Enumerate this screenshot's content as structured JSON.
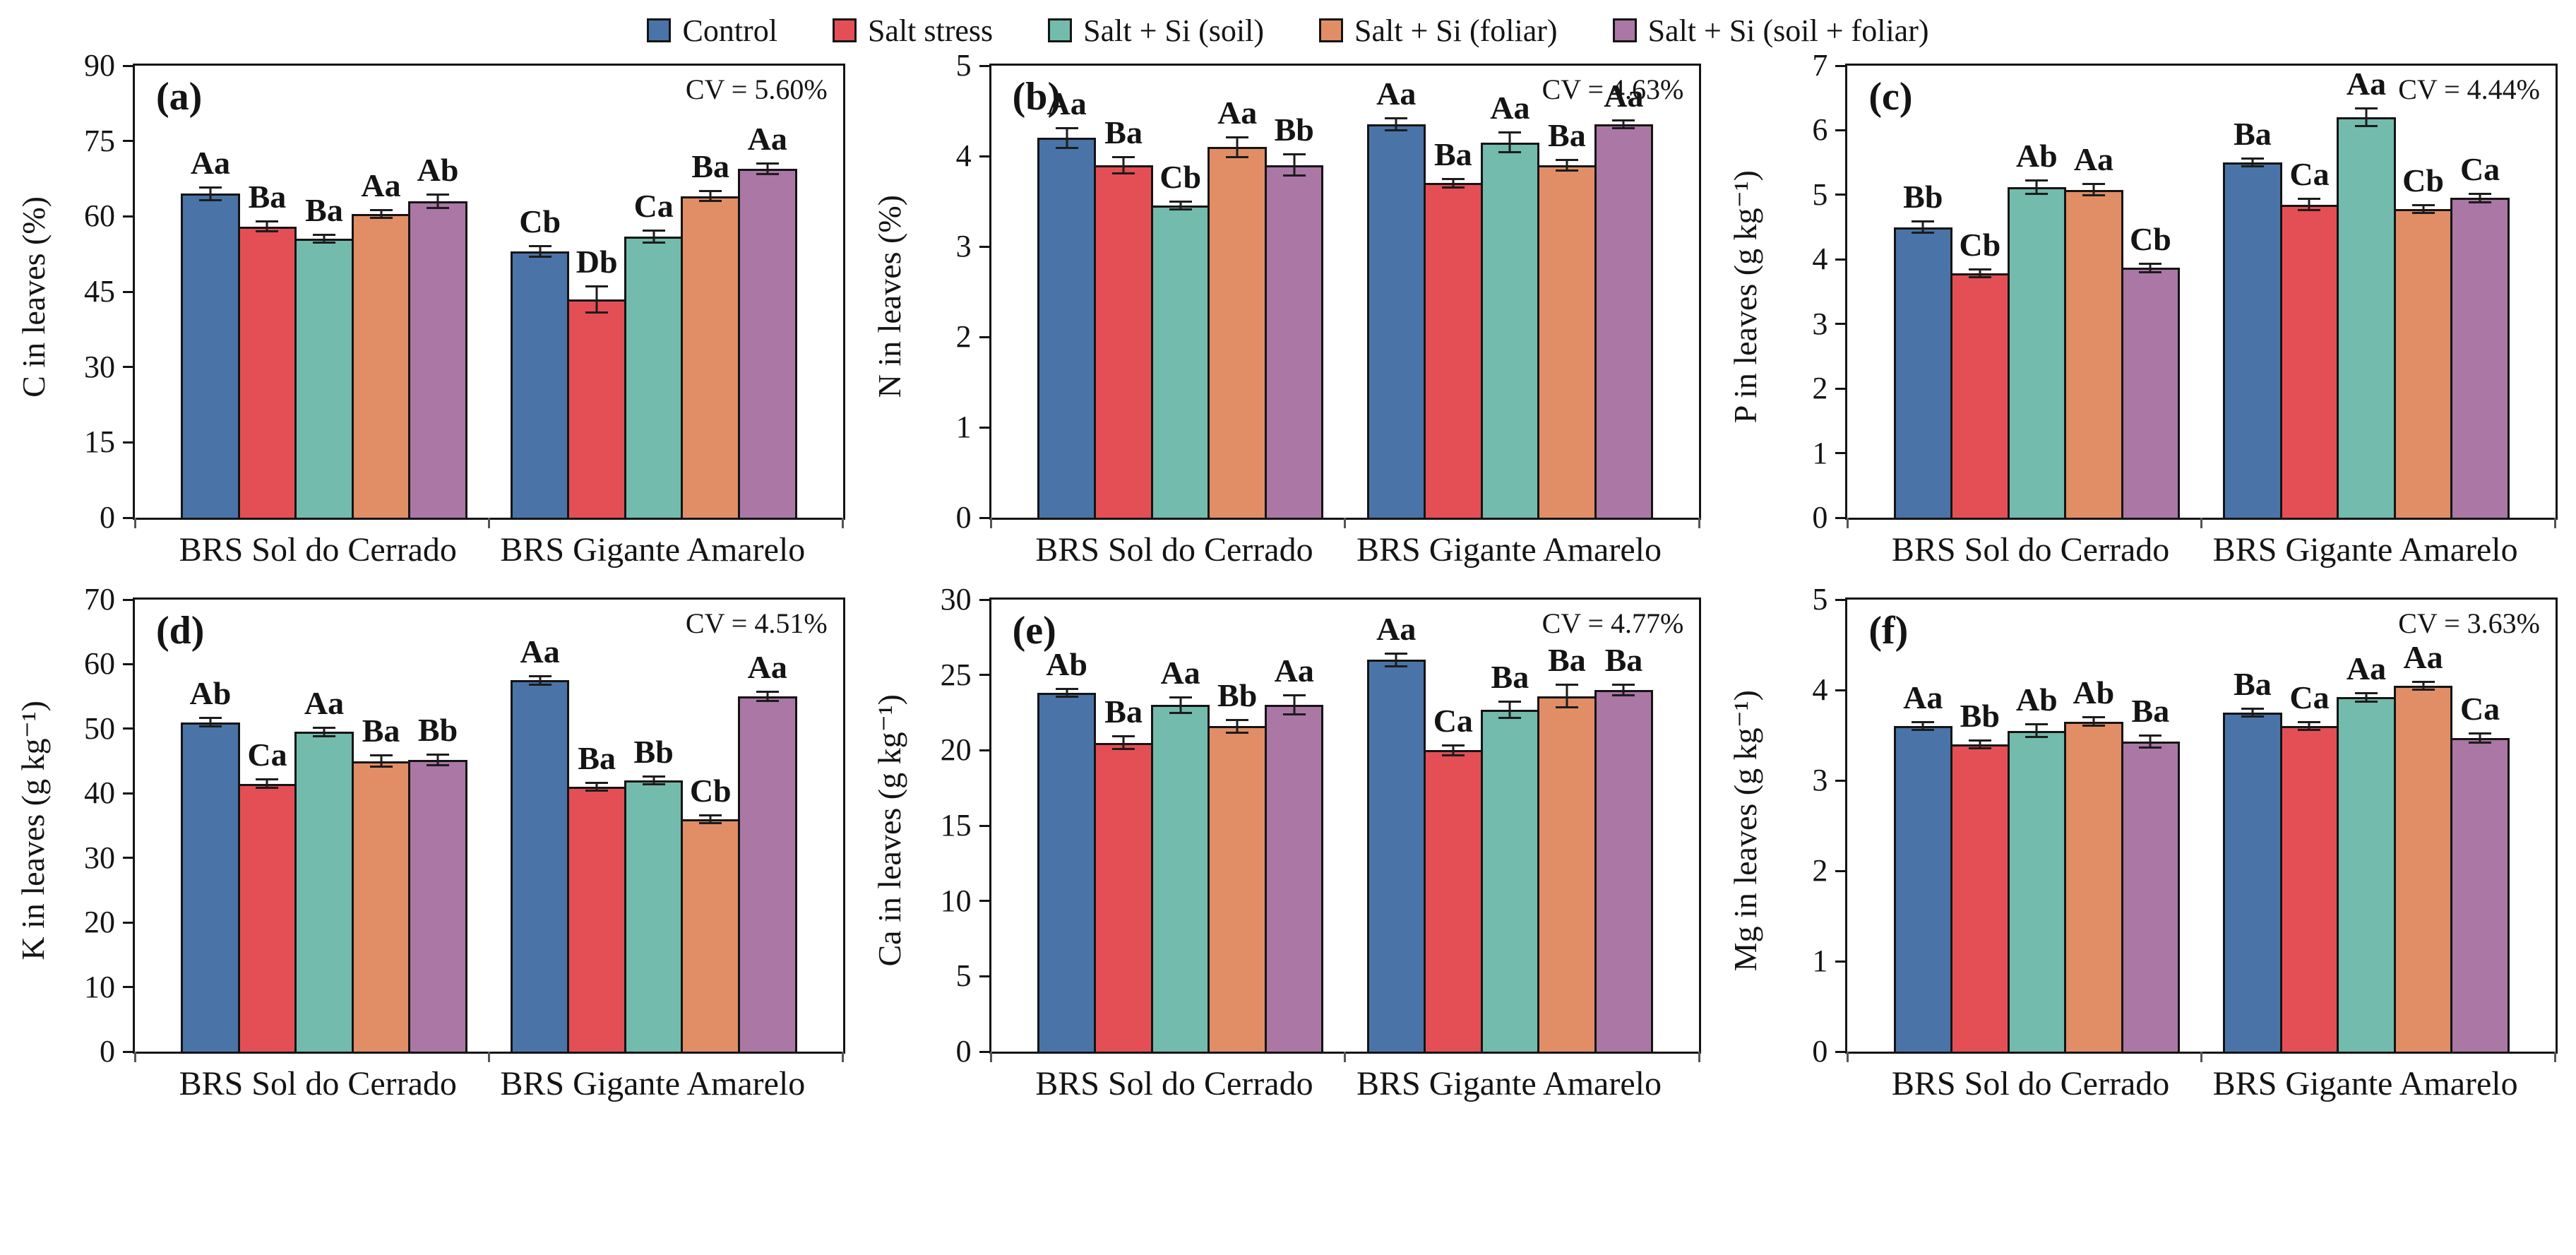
{
  "legend": {
    "items": [
      {
        "label": "Control",
        "color": "#4a74a8"
      },
      {
        "label": "Salt stress",
        "color": "#e44f55"
      },
      {
        "label": "Salt + Si (soil)",
        "color": "#73bbad"
      },
      {
        "label": "Salt + Si (foliar)",
        "color": "#e18e66"
      },
      {
        "label": "Salt + Si (soil + foliar)",
        "color": "#ab77a5"
      }
    ]
  },
  "chart_data": [
    {
      "type": "bar",
      "panel_label": "(a)",
      "cv_label": "CV = 5.60%",
      "ylabel": "C in leaves (%)",
      "ymax": 90,
      "ystep": 15,
      "ylim": [
        0,
        90
      ],
      "treatments": [
        "Control",
        "Salt stress",
        "Salt + Si (soil)",
        "Salt + Si (foliar)",
        "Salt + Si (soil + foliar)"
      ],
      "groups": [
        {
          "label": "BRS Sol do Cerrado",
          "values": [
            64.5,
            58,
            55.5,
            60.5,
            63
          ],
          "errors": [
            1.5,
            1.2,
            0.8,
            1.0,
            1.5
          ],
          "letters": [
            "Aa",
            "Ba",
            "Ba",
            "Aa",
            "Ab"
          ]
        },
        {
          "label": "BRS Gigante Amarelo",
          "values": [
            53,
            43.5,
            56,
            64,
            69.5
          ],
          "errors": [
            1.3,
            2.8,
            1.4,
            1.2,
            1.3
          ],
          "letters": [
            "Cb",
            "Db",
            "Ca",
            "Ba",
            "Aa"
          ]
        }
      ]
    },
    {
      "type": "bar",
      "panel_label": "(b)",
      "cv_label": "CV = 4.63%",
      "ylabel": "N in leaves (%)",
      "ymax": 5,
      "ystep": 1,
      "ylim": [
        0,
        5
      ],
      "treatments": [
        "Control",
        "Salt stress",
        "Salt + Si (soil)",
        "Salt + Si (foliar)",
        "Salt + Si (soil + foliar)"
      ],
      "groups": [
        {
          "label": "BRS Sol do Cerrado",
          "values": [
            4.2,
            3.9,
            3.45,
            4.1,
            3.9
          ],
          "errors": [
            0.12,
            0.1,
            0.05,
            0.12,
            0.13
          ],
          "letters": [
            "Aa",
            "Ba",
            "Cb",
            "Aa",
            "Bb"
          ]
        },
        {
          "label": "BRS Gigante Amarelo",
          "values": [
            4.35,
            3.7,
            4.15,
            3.9,
            4.35
          ],
          "errors": [
            0.08,
            0.06,
            0.12,
            0.07,
            0.05
          ],
          "letters": [
            "Aa",
            "Ba",
            "Aa",
            "Ba",
            "Aa"
          ]
        }
      ]
    },
    {
      "type": "bar",
      "panel_label": "(c)",
      "cv_label": "CV = 4.44%",
      "ylabel": "P in leaves (g kg⁻¹)",
      "ymax": 7,
      "ystep": 1,
      "ylim": [
        0,
        7
      ],
      "treatments": [
        "Control",
        "Salt stress",
        "Salt + Si (soil)",
        "Salt + Si (foliar)",
        "Salt + Si (soil + foliar)"
      ],
      "groups": [
        {
          "label": "BRS Sol do Cerrado",
          "values": [
            4.5,
            3.78,
            5.12,
            5.08,
            3.87
          ],
          "errors": [
            0.1,
            0.07,
            0.12,
            0.1,
            0.08
          ],
          "letters": [
            "Bb",
            "Cb",
            "Ab",
            "Aa",
            "Cb"
          ]
        },
        {
          "label": "BRS Gigante Amarelo",
          "values": [
            5.5,
            4.85,
            6.2,
            4.78,
            4.95
          ],
          "errors": [
            0.07,
            0.1,
            0.15,
            0.08,
            0.08
          ],
          "letters": [
            "Ba",
            "Ca",
            "Aa",
            "Cb",
            "Ca"
          ]
        }
      ]
    },
    {
      "type": "bar",
      "panel_label": "(d)",
      "cv_label": "CV = 4.51%",
      "ylabel": "K in leaves (g kg⁻¹)",
      "ymax": 70,
      "ystep": 10,
      "ylim": [
        0,
        70
      ],
      "treatments": [
        "Control",
        "Salt stress",
        "Salt + Si (soil)",
        "Salt + Si (foliar)",
        "Salt + Si (soil + foliar)"
      ],
      "groups": [
        {
          "label": "BRS Sol do Cerrado",
          "values": [
            51,
            41.5,
            49.5,
            45,
            45.2
          ],
          "errors": [
            0.8,
            0.8,
            0.8,
            1.0,
            1.0
          ],
          "letters": [
            "Ab",
            "Ca",
            "Aa",
            "Ba",
            "Bb"
          ]
        },
        {
          "label": "BRS Gigante Amarelo",
          "values": [
            57.5,
            41,
            42,
            36,
            55
          ],
          "errors": [
            0.8,
            0.8,
            0.6,
            0.8,
            0.9
          ],
          "letters": [
            "Aa",
            "Ba",
            "Bb",
            "Cb",
            "Aa"
          ]
        }
      ]
    },
    {
      "type": "bar",
      "panel_label": "(e)",
      "cv_label": "CV = 4.77%",
      "ylabel": "Ca in leaves (g kg⁻¹)",
      "ymax": 30,
      "ystep": 5,
      "ylim": [
        0,
        30
      ],
      "treatments": [
        "Control",
        "Salt stress",
        "Salt + Si (soil)",
        "Salt + Si (foliar)",
        "Salt + Si (soil + foliar)"
      ],
      "groups": [
        {
          "label": "BRS Sol do Cerrado",
          "values": [
            23.8,
            20.5,
            23,
            21.6,
            23
          ],
          "errors": [
            0.3,
            0.5,
            0.6,
            0.5,
            0.7
          ],
          "letters": [
            "Ab",
            "Ba",
            "Aa",
            "Bb",
            "Aa"
          ]
        },
        {
          "label": "BRS Gigante Amarelo",
          "values": [
            26,
            20,
            22.7,
            23.6,
            24
          ],
          "errors": [
            0.5,
            0.4,
            0.6,
            0.8,
            0.4
          ],
          "letters": [
            "Aa",
            "Ca",
            "Ba",
            "Ba",
            "Ba"
          ]
        }
      ]
    },
    {
      "type": "bar",
      "panel_label": "(f)",
      "cv_label": "CV = 3.63%",
      "ylabel": "Mg in leaves (g kg⁻¹)",
      "ymax": 5,
      "ystep": 1,
      "ylim": [
        0,
        5
      ],
      "treatments": [
        "Control",
        "Salt stress",
        "Salt + Si (soil)",
        "Salt + Si (foliar)",
        "Salt + Si (soil + foliar)"
      ],
      "groups": [
        {
          "label": "BRS Sol do Cerrado",
          "values": [
            3.6,
            3.4,
            3.55,
            3.65,
            3.43
          ],
          "errors": [
            0.03,
            0.05,
            0.08,
            0.06,
            0.08
          ],
          "letters": [
            "Aa",
            "Bb",
            "Ab",
            "Ab",
            "Ba"
          ]
        },
        {
          "label": "BRS Gigante Amarelo",
          "values": [
            3.75,
            3.6,
            3.92,
            4.05,
            3.47
          ],
          "errors": [
            0.04,
            0.03,
            0.06,
            0.03,
            0.06
          ],
          "letters": [
            "Ba",
            "Ca",
            "Aa",
            "Aa",
            "Ca"
          ]
        }
      ]
    }
  ]
}
